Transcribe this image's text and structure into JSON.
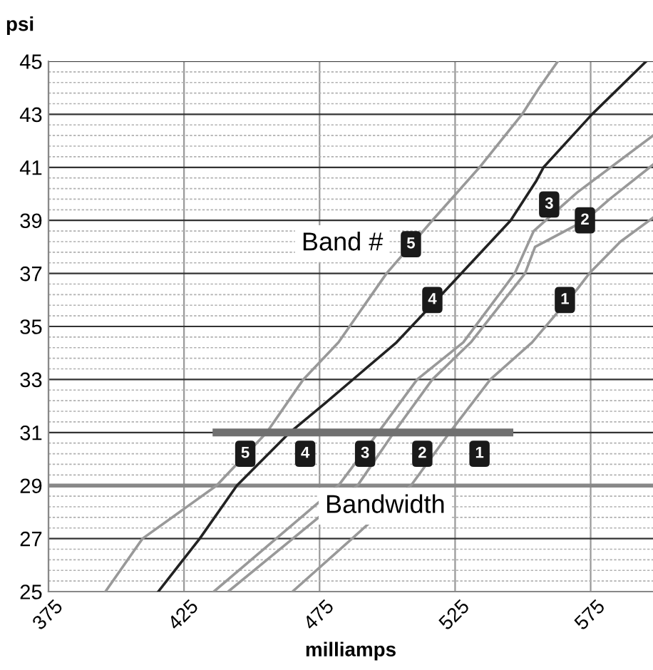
{
  "chart_data": {
    "type": "line",
    "xlabel": "milliamps",
    "ylabel": "psi",
    "series": [
      {
        "color": "#999999",
        "x": [
          396,
          409.7,
          437,
          455.5,
          469,
          482,
          499.7,
          516.6,
          534,
          549.7,
          556,
          562.9
        ],
        "values": [
          25,
          27,
          29,
          31,
          33,
          34.4,
          37,
          39,
          41,
          43,
          44,
          45
        ]
      },
      {
        "color": "#222222",
        "x": [
          415.5,
          430.8,
          444.5,
          464,
          477,
          503.4,
          521.8,
          545.5,
          555,
          557.6,
          575.5,
          595.5
        ],
        "values": [
          25,
          27,
          29,
          31,
          32.1,
          34.4,
          36.4,
          39,
          40.5,
          41,
          43,
          45
        ]
      },
      {
        "color": "#999999",
        "x": [
          436,
          482,
          496.6,
          511,
          528,
          547,
          554,
          570,
          598
        ],
        "values": [
          25,
          29,
          31,
          33,
          34.4,
          37,
          38.6,
          40.05,
          42.2
        ]
      },
      {
        "color": "#999999",
        "x": [
          441.3,
          489,
          502.4,
          516.6,
          530.8,
          550.8,
          554.5,
          573,
          582,
          598
        ],
        "values": [
          25,
          29,
          31,
          33,
          34.4,
          37,
          38,
          39,
          39.8,
          41.1
        ]
      },
      {
        "color": "#999999",
        "x": [
          465,
          487,
          508.7,
          523,
          538,
          553.4,
          570,
          574.5,
          586,
          598
        ],
        "values": [
          25,
          27,
          29,
          31,
          33,
          34.4,
          36.4,
          37,
          38.2,
          39.1
        ]
      },
      {
        "color": "#707070",
        "x": [
          437,
          545
        ],
        "values": [
          31,
          31
        ]
      }
    ],
    "xlim": [
      375,
      598
    ],
    "xticks": [
      375,
      425,
      475,
      525,
      575
    ],
    "ylim": [
      25,
      45
    ],
    "yticks": [
      25,
      {
        "value": 25.4,
        "label": null
      },
      {
        "value": 25.8,
        "label": null
      },
      {
        "value": 26.2,
        "label": null
      },
      {
        "value": 26.6,
        "label": null
      },
      27,
      {
        "value": 27.4,
        "label": null
      },
      {
        "value": 27.8,
        "label": null
      },
      {
        "value": 28.2,
        "label": null
      },
      {
        "value": 28.6,
        "label": null
      },
      29,
      {
        "value": 29.4,
        "label": null
      },
      {
        "value": 29.8,
        "label": null
      },
      {
        "value": 30.2,
        "label": null
      },
      {
        "value": 30.6,
        "label": null
      },
      31,
      {
        "value": 31.4,
        "label": null
      },
      {
        "value": 31.8,
        "label": null
      },
      {
        "value": 32.2,
        "label": null
      },
      {
        "value": 32.6,
        "label": null
      },
      33,
      {
        "value": 33.4,
        "label": null
      },
      {
        "value": 33.8,
        "label": null
      },
      {
        "value": 34.2,
        "label": null
      },
      {
        "value": 34.6,
        "label": null
      },
      35,
      {
        "value": 35.4,
        "label": null
      },
      {
        "value": 35.8,
        "label": null
      },
      {
        "value": 36.2,
        "label": null
      },
      {
        "value": 36.6,
        "label": null
      },
      37,
      {
        "value": 37.4,
        "label": null
      },
      {
        "value": 37.8,
        "label": null
      },
      {
        "value": 38.2,
        "label": null
      },
      {
        "value": 38.6,
        "label": null
      },
      39,
      {
        "value": 39.4,
        "label": null
      },
      {
        "value": 39.8,
        "label": null
      },
      {
        "value": 40.2,
        "label": null
      },
      {
        "value": 40.6,
        "label": null
      },
      41,
      {
        "value": 41.4,
        "label": null
      },
      {
        "value": 41.8,
        "label": null
      },
      {
        "value": 42.2,
        "label": null
      },
      {
        "value": 42.6,
        "label": null
      },
      43,
      {
        "value": 43.4,
        "label": null
      },
      {
        "value": 43.8,
        "label": null
      },
      {
        "value": 44.2,
        "label": null
      },
      {
        "value": 44.6,
        "label": null
      },
      45
    ],
    "grid": true,
    "line_style": "solid",
    "marker": "none",
    "ref_lines": [
      {
        "axis": "y",
        "value": 29,
        "color": "#888888"
      }
    ],
    "annotations": [
      {
        "text": "5",
        "x": 447.6,
        "y": 30.2
      },
      {
        "text": "4",
        "x": 469.7,
        "y": 30.2
      },
      {
        "text": "3",
        "x": 491.8,
        "y": 30.2
      },
      {
        "text": "2",
        "x": 512.9,
        "y": 30.2
      },
      {
        "text": "1",
        "x": 534,
        "y": 30.2
      },
      {
        "text": "5",
        "x": 508.7,
        "y": 38.1
      },
      {
        "text": "4",
        "x": 516.6,
        "y": 36.0
      },
      {
        "text": "3",
        "x": 559.7,
        "y": 39.6
      },
      {
        "text": "2",
        "x": 572.9,
        "y": 39.0
      },
      {
        "text": "1",
        "x": 565.5,
        "y": 36.0
      },
      "Band #",
      "Bandwidth"
    ]
  }
}
